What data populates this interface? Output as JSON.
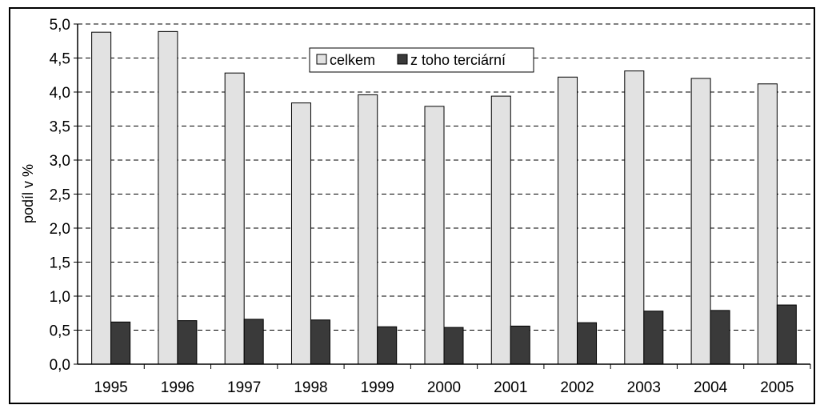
{
  "chart_data": {
    "type": "bar",
    "title": "",
    "xlabel": "",
    "ylabel": "podíl v %",
    "ylim": [
      0,
      5
    ],
    "ytick_step": 0.5,
    "ytick_labels": [
      "0,0",
      "0,5",
      "1,0",
      "1,5",
      "2,0",
      "2,5",
      "3,0",
      "3,5",
      "4,0",
      "4,5",
      "5,0"
    ],
    "grid": "horizontal dashed",
    "legend_position": "top-center",
    "categories": [
      "1995",
      "1996",
      "1997",
      "1998",
      "1999",
      "2000",
      "2001",
      "2002",
      "2003",
      "2004",
      "2005"
    ],
    "series": [
      {
        "name": "celkem",
        "color": "#e2e2e2",
        "values": [
          4.88,
          4.89,
          4.28,
          3.84,
          3.96,
          3.79,
          3.94,
          4.22,
          4.31,
          4.2,
          4.12
        ]
      },
      {
        "name": "z toho terciární",
        "color": "#3a3a3a",
        "values": [
          0.62,
          0.64,
          0.66,
          0.65,
          0.55,
          0.54,
          0.56,
          0.61,
          0.78,
          0.79,
          0.87
        ]
      }
    ]
  }
}
